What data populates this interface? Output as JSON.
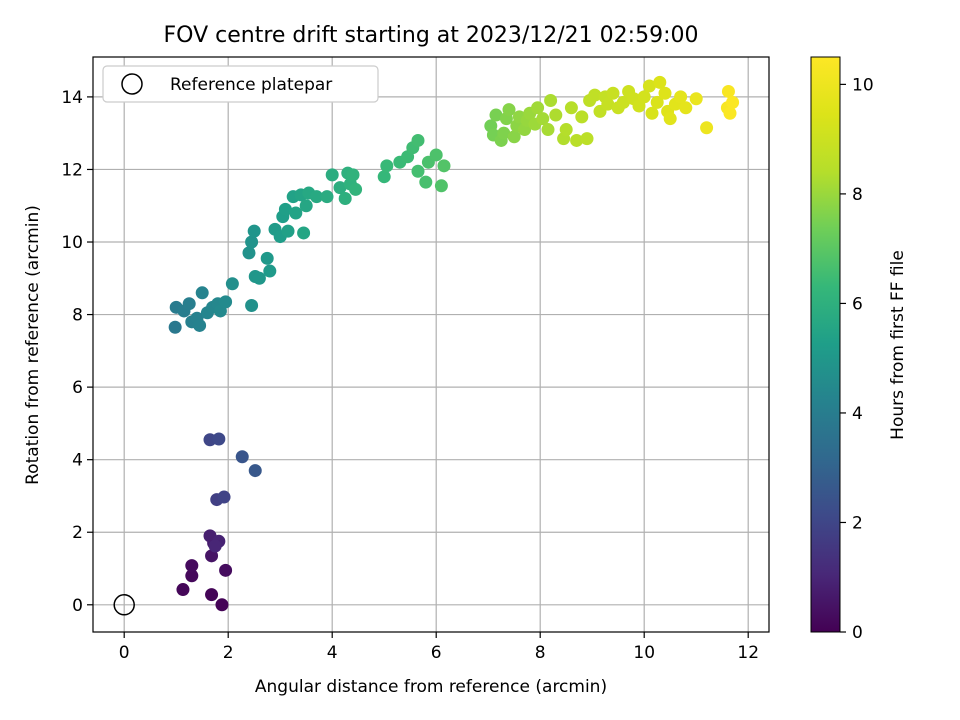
{
  "chart_data": {
    "type": "scatter",
    "title": "FOV centre drift starting at 2023/12/21 02:59:00",
    "xlabel": "Angular distance from reference (arcmin)",
    "ylabel": "Rotation from reference (arcmin)",
    "xlim": [
      -0.6,
      12.4
    ],
    "ylim": [
      -0.75,
      15.1
    ],
    "x_ticks": [
      0,
      2,
      4,
      6,
      8,
      10,
      12
    ],
    "y_ticks": [
      0,
      2,
      4,
      6,
      8,
      10,
      12,
      14
    ],
    "grid": true,
    "legend": {
      "placement": "top-left",
      "entries": [
        "Reference platepar"
      ]
    },
    "reference_point": {
      "x": 0.0,
      "y": 0.0
    },
    "colorbar": {
      "label": "Hours from first FF file",
      "min": 0,
      "max": 10.5,
      "ticks": [
        0,
        2,
        4,
        6,
        8,
        10
      ],
      "colormap": "viridis"
    },
    "points": [
      [
        1.88,
        0.0,
        0.05
      ],
      [
        1.68,
        0.28,
        0.1
      ],
      [
        1.13,
        0.42,
        0.15
      ],
      [
        1.3,
        0.8,
        0.2
      ],
      [
        1.3,
        1.08,
        0.25
      ],
      [
        1.95,
        0.95,
        0.3
      ],
      [
        1.68,
        1.35,
        0.5
      ],
      [
        1.72,
        1.7,
        0.7
      ],
      [
        1.65,
        1.9,
        0.8
      ],
      [
        1.82,
        1.75,
        0.9
      ],
      [
        1.75,
        1.62,
        1.0
      ],
      [
        1.78,
        2.9,
        1.8
      ],
      [
        1.92,
        2.97,
        1.9
      ],
      [
        1.65,
        4.55,
        2.0
      ],
      [
        1.82,
        4.57,
        2.1
      ],
      [
        2.27,
        4.08,
        2.5
      ],
      [
        2.52,
        3.7,
        2.6
      ],
      [
        0.98,
        7.65,
        3.8
      ],
      [
        1.0,
        8.2,
        3.9
      ],
      [
        1.15,
        8.1,
        4.0
      ],
      [
        1.25,
        8.3,
        4.05
      ],
      [
        1.3,
        7.8,
        4.1
      ],
      [
        1.4,
        7.9,
        4.15
      ],
      [
        1.45,
        7.7,
        4.2
      ],
      [
        1.5,
        8.6,
        4.25
      ],
      [
        1.6,
        8.05,
        4.3
      ],
      [
        1.7,
        8.2,
        4.35
      ],
      [
        1.8,
        8.3,
        4.4
      ],
      [
        1.85,
        8.1,
        4.45
      ],
      [
        1.95,
        8.35,
        4.5
      ],
      [
        2.08,
        8.85,
        4.7
      ],
      [
        2.45,
        8.25,
        4.75
      ],
      [
        2.4,
        9.7,
        4.8
      ],
      [
        2.45,
        10.0,
        4.85
      ],
      [
        2.5,
        10.3,
        4.9
      ],
      [
        2.52,
        9.05,
        4.95
      ],
      [
        2.6,
        9.0,
        5.0
      ],
      [
        2.75,
        9.55,
        5.05
      ],
      [
        2.8,
        9.2,
        5.1
      ],
      [
        2.9,
        10.35,
        5.15
      ],
      [
        3.0,
        10.15,
        5.2
      ],
      [
        3.05,
        10.7,
        5.25
      ],
      [
        3.1,
        10.9,
        5.3
      ],
      [
        3.15,
        10.3,
        5.35
      ],
      [
        3.25,
        11.25,
        5.4
      ],
      [
        3.3,
        10.8,
        5.45
      ],
      [
        3.4,
        11.3,
        5.5
      ],
      [
        3.45,
        10.25,
        5.55
      ],
      [
        3.5,
        11.0,
        5.6
      ],
      [
        3.55,
        11.35,
        5.65
      ],
      [
        3.7,
        11.25,
        5.7
      ],
      [
        3.9,
        11.25,
        5.8
      ],
      [
        4.0,
        11.85,
        5.85
      ],
      [
        4.15,
        11.5,
        5.9
      ],
      [
        4.25,
        11.2,
        5.95
      ],
      [
        4.3,
        11.9,
        6.0
      ],
      [
        4.35,
        11.6,
        6.05
      ],
      [
        4.4,
        11.85,
        6.1
      ],
      [
        4.45,
        11.45,
        6.15
      ],
      [
        5.0,
        11.8,
        6.3
      ],
      [
        5.05,
        12.1,
        6.35
      ],
      [
        5.3,
        12.2,
        6.4
      ],
      [
        5.45,
        12.35,
        6.45
      ],
      [
        5.55,
        12.6,
        6.5
      ],
      [
        5.65,
        12.8,
        6.55
      ],
      [
        5.65,
        11.95,
        6.6
      ],
      [
        5.8,
        11.65,
        6.65
      ],
      [
        5.85,
        12.2,
        6.7
      ],
      [
        6.0,
        12.4,
        6.75
      ],
      [
        6.1,
        11.55,
        6.8
      ],
      [
        6.15,
        12.1,
        6.85
      ],
      [
        7.05,
        13.2,
        7.4
      ],
      [
        7.1,
        12.95,
        7.45
      ],
      [
        7.15,
        13.5,
        7.5
      ],
      [
        7.25,
        12.8,
        7.55
      ],
      [
        7.3,
        13.0,
        7.6
      ],
      [
        7.35,
        13.4,
        7.65
      ],
      [
        7.4,
        13.65,
        7.7
      ],
      [
        7.5,
        12.9,
        7.75
      ],
      [
        7.55,
        13.2,
        7.8
      ],
      [
        7.6,
        13.45,
        7.85
      ],
      [
        7.7,
        13.1,
        7.9
      ],
      [
        7.75,
        13.35,
        7.95
      ],
      [
        7.8,
        13.55,
        8.0
      ],
      [
        7.9,
        13.25,
        8.05
      ],
      [
        7.95,
        13.7,
        8.1
      ],
      [
        8.05,
        13.4,
        8.15
      ],
      [
        8.15,
        13.1,
        8.2
      ],
      [
        8.2,
        13.9,
        8.25
      ],
      [
        8.3,
        13.5,
        8.3
      ],
      [
        8.45,
        12.85,
        8.35
      ],
      [
        8.5,
        13.1,
        8.4
      ],
      [
        8.6,
        13.7,
        8.45
      ],
      [
        8.7,
        12.8,
        8.5
      ],
      [
        8.8,
        13.45,
        8.55
      ],
      [
        8.9,
        12.85,
        8.6
      ],
      [
        8.95,
        13.9,
        8.65
      ],
      [
        9.05,
        14.05,
        8.7
      ],
      [
        9.15,
        13.6,
        8.75
      ],
      [
        9.25,
        14.0,
        8.8
      ],
      [
        9.3,
        13.8,
        8.85
      ],
      [
        9.4,
        14.1,
        8.9
      ],
      [
        9.5,
        13.7,
        8.95
      ],
      [
        9.6,
        13.85,
        9.0
      ],
      [
        9.7,
        14.15,
        9.05
      ],
      [
        9.8,
        13.95,
        9.1
      ],
      [
        9.9,
        13.75,
        9.15
      ],
      [
        10.0,
        14.0,
        9.2
      ],
      [
        10.1,
        14.3,
        9.3
      ],
      [
        10.15,
        13.55,
        9.35
      ],
      [
        10.25,
        13.85,
        9.4
      ],
      [
        10.3,
        14.4,
        9.45
      ],
      [
        10.4,
        14.1,
        9.5
      ],
      [
        10.45,
        13.6,
        9.55
      ],
      [
        10.5,
        13.4,
        9.6
      ],
      [
        10.6,
        13.8,
        9.65
      ],
      [
        10.7,
        14.0,
        9.7
      ],
      [
        10.8,
        13.7,
        9.75
      ],
      [
        11.0,
        13.95,
        9.9
      ],
      [
        11.2,
        13.15,
        10.0
      ],
      [
        11.6,
        13.7,
        10.3
      ],
      [
        11.62,
        14.15,
        10.35
      ],
      [
        11.65,
        13.55,
        10.4
      ],
      [
        11.7,
        13.85,
        10.45
      ]
    ]
  }
}
